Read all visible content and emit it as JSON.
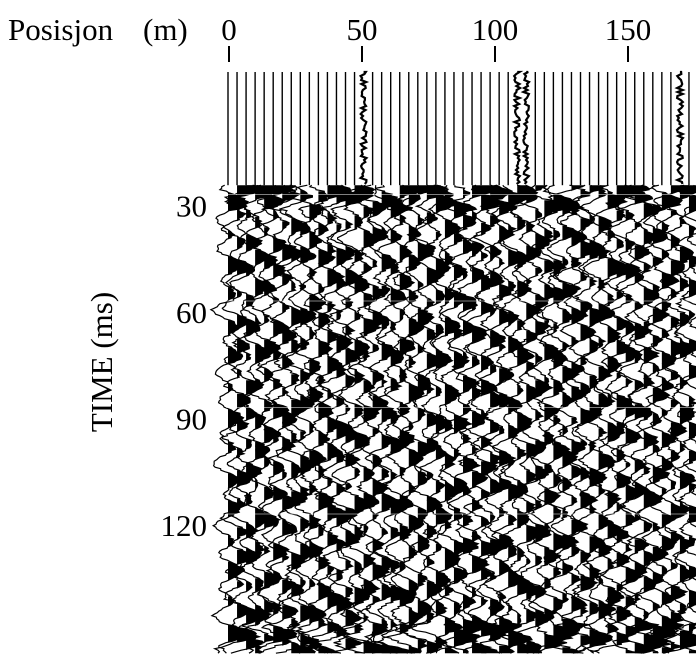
{
  "chart_data": {
    "type": "seismic-section",
    "x_axis": {
      "label_name": "Posisjon",
      "label_unit": "(m)",
      "ticks": [
        0,
        50,
        100,
        150
      ],
      "range": [
        0,
        176
      ]
    },
    "y_axis": {
      "label": "TIME  (ms)",
      "ticks": [
        30,
        60,
        90,
        120
      ],
      "range": [
        0,
        156
      ],
      "direction": "down"
    },
    "first_break_time_ms": 24,
    "noisy_traces_near_m": [
      50,
      110,
      170
    ],
    "trace_count": 53,
    "trace_color": "#000000",
    "background_color": "#ffffff",
    "wiggle_fill": "positive-black"
  }
}
